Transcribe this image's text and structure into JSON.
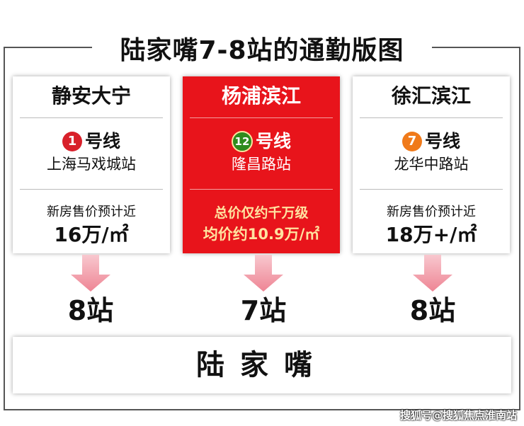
{
  "title": "陆家嘴7-8站的通勤版图",
  "cards": [
    {
      "name": "静安大宁",
      "line_no": "1",
      "line_label": "号线",
      "line_color": "#d8202a",
      "station": "上海马戏城站",
      "price_label": "新房售价预计近",
      "price": "16万/㎡",
      "count": "8站"
    },
    {
      "name": "杨浦滨江",
      "line_no": "12",
      "line_label": "号线",
      "line_color": "#2e8b1e",
      "station": "隆昌路站",
      "price_label": "总价仅约千万级",
      "price": "均价约10.9万/㎡",
      "count": "7站"
    },
    {
      "name": "徐汇滨江",
      "line_no": "7",
      "line_label": "号线",
      "line_color": "#f07a1a",
      "station": "龙华中路站",
      "price_label": "新房售价预计近",
      "price": "18万+/㎡",
      "count": "8站"
    }
  ],
  "destination": "陆家嘴",
  "watermark": "搜狐号@搜狐焦点淮南站",
  "colors": {
    "highlight": "#e8141b",
    "arrow": "#f08f9c"
  }
}
